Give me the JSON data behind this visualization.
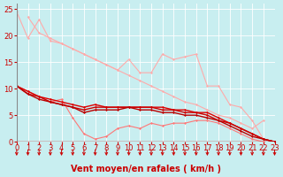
{
  "background_color": "#c8eef0",
  "grid_color": "#ffffff",
  "xlabel": "Vent moyen/en rafales ( km/h )",
  "xlabel_color": "#cc0000",
  "xlabel_fontsize": 7,
  "tick_color": "#cc0000",
  "tick_fontsize": 6,
  "ylim": [
    0,
    26
  ],
  "xlim": [
    0,
    23
  ],
  "yticks": [
    0,
    5,
    10,
    15,
    20,
    25
  ],
  "xticks": [
    0,
    1,
    2,
    3,
    4,
    5,
    6,
    7,
    8,
    9,
    10,
    11,
    12,
    13,
    14,
    15,
    16,
    17,
    18,
    19,
    20,
    21,
    22,
    23
  ],
  "series": [
    {
      "x": [
        0,
        1,
        2,
        3,
        4,
        5,
        6,
        7,
        8,
        9,
        10,
        11,
        12,
        13,
        14,
        15,
        16,
        17,
        18,
        19,
        20,
        21,
        22
      ],
      "y": [
        24.5,
        19.5,
        23.0,
        19.0,
        18.5,
        17.5,
        16.5,
        15.5,
        14.5,
        13.5,
        15.5,
        13.0,
        13.0,
        16.5,
        15.5,
        16.0,
        16.5,
        10.5,
        10.5,
        7.0,
        6.5,
        4.0,
        0.5
      ],
      "color": "#ffaaaa",
      "linewidth": 0.8,
      "marker": "D",
      "markersize": 1.5
    },
    {
      "x": [
        1,
        2,
        3,
        4,
        5,
        6,
        7,
        8,
        9,
        10,
        11,
        12,
        13,
        14,
        15,
        16,
        17,
        18,
        19,
        20,
        21,
        22
      ],
      "y": [
        23.5,
        20.5,
        19.5,
        18.5,
        17.5,
        16.5,
        15.5,
        14.5,
        13.5,
        12.5,
        11.5,
        10.5,
        9.5,
        8.5,
        7.5,
        7.0,
        6.0,
        5.0,
        4.5,
        3.5,
        2.5,
        4.0
      ],
      "color": "#ffaaaa",
      "linewidth": 0.8,
      "marker": "D",
      "markersize": 1.5
    },
    {
      "x": [
        0,
        1,
        2,
        3,
        4,
        5,
        6,
        7,
        8,
        9,
        10,
        11,
        12,
        13,
        14,
        15,
        16,
        17,
        18,
        19,
        20,
        21,
        22
      ],
      "y": [
        10.5,
        9.5,
        8.5,
        7.5,
        8.0,
        4.5,
        1.5,
        0.5,
        1.0,
        2.5,
        3.0,
        2.5,
        3.5,
        3.0,
        3.5,
        3.5,
        4.0,
        4.0,
        3.5,
        2.5,
        1.5,
        0.5,
        0.0
      ],
      "color": "#ff7777",
      "linewidth": 0.8,
      "marker": "D",
      "markersize": 1.5
    },
    {
      "x": [
        0,
        1,
        2,
        3,
        4,
        5,
        6,
        7,
        8,
        9,
        10,
        11,
        12,
        13,
        14,
        15,
        16,
        17,
        18,
        19,
        20,
        21,
        22,
        23
      ],
      "y": [
        10.5,
        9.5,
        8.5,
        8.0,
        7.5,
        7.0,
        6.5,
        7.0,
        6.5,
        6.5,
        6.5,
        6.5,
        6.5,
        6.5,
        6.0,
        6.0,
        5.5,
        5.5,
        4.5,
        3.5,
        2.5,
        1.5,
        0.5,
        0.0
      ],
      "color": "#dd0000",
      "linewidth": 1.0,
      "marker": "D",
      "markersize": 1.5
    },
    {
      "x": [
        0,
        1,
        2,
        3,
        4,
        5,
        6,
        7,
        8,
        9,
        10,
        11,
        12,
        13,
        14,
        15,
        16,
        17,
        18,
        19,
        20,
        21,
        22,
        23
      ],
      "y": [
        10.5,
        9.0,
        8.5,
        7.5,
        7.0,
        6.5,
        6.0,
        6.5,
        6.5,
        6.5,
        6.5,
        6.5,
        6.5,
        6.0,
        6.0,
        5.5,
        5.5,
        5.0,
        4.0,
        3.5,
        2.5,
        1.5,
        0.5,
        0.0
      ],
      "color": "#cc0000",
      "linewidth": 1.0,
      "marker": "D",
      "markersize": 1.5
    },
    {
      "x": [
        0,
        1,
        2,
        3,
        4,
        5,
        6,
        7,
        8,
        9,
        10,
        11,
        12,
        13,
        14,
        15,
        16,
        17,
        18,
        19,
        20,
        21,
        22,
        23
      ],
      "y": [
        10.5,
        9.0,
        8.0,
        7.5,
        7.0,
        6.5,
        5.5,
        6.0,
        6.0,
        6.0,
        6.5,
        6.0,
        6.0,
        5.5,
        5.5,
        5.0,
        5.0,
        4.5,
        4.0,
        3.0,
        2.0,
        1.0,
        0.5,
        0.0
      ],
      "color": "#bb0000",
      "linewidth": 1.0,
      "marker": "D",
      "markersize": 1.5
    }
  ],
  "arrow_color": "#cc0000"
}
